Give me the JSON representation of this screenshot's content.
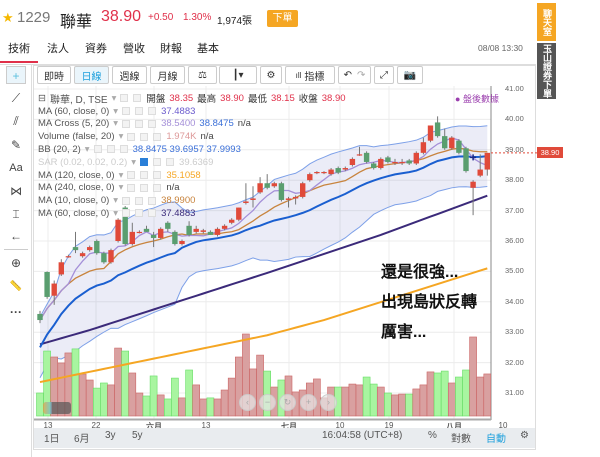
{
  "header": {
    "code": "1229",
    "name": "聯華",
    "price": "38.90",
    "change": "+0.50",
    "change_pct": "1.30%",
    "volume": "1,974張",
    "order_button": "下單"
  },
  "side_tabs": {
    "chat": "聊天室",
    "broker": "玉山證券下單"
  },
  "tabs": [
    {
      "label": "技術",
      "active": true
    },
    {
      "label": "法人"
    },
    {
      "label": "資券"
    },
    {
      "label": "營收"
    },
    {
      "label": "財報"
    },
    {
      "label": "基本"
    }
  ],
  "datetime": "08/08 13:30",
  "toolbar": {
    "realtime": "即時",
    "daily": "日線",
    "weekly": "週線",
    "monthly": "月線",
    "indicators": "指標"
  },
  "legend": {
    "symbol": "聯華, D, TSE",
    "open_label": "開盤",
    "open": "38.35",
    "high_label": "最高",
    "high": "38.90",
    "low_label": "最低",
    "low": "38.15",
    "close_label": "收盤",
    "close": "38.90",
    "rows": [
      {
        "name": "MA (60, close, 0)",
        "values": [
          "37.4883"
        ],
        "colors": [
          "#6a5acd"
        ]
      },
      {
        "name": "MA Cross (5, 20)",
        "values": [
          "38.5400",
          "38.8475",
          "n/a"
        ],
        "colors": [
          "#a48fd8",
          "#3a6fd8",
          "#444"
        ]
      },
      {
        "name": "Volume (false, 20)",
        "values": [
          "1.974K",
          "n/a"
        ],
        "colors": [
          "#d99",
          "#444"
        ]
      },
      {
        "name": "BB (20, 2)",
        "values": [
          "38.8475 39.6957 37.9993"
        ],
        "colors": [
          "#3a6fd8"
        ]
      },
      {
        "name": "SAR (0.02, 0.02, 0.2)",
        "values": [
          "39.6369"
        ],
        "colors": [
          "#ccc"
        ],
        "hidden": true
      },
      {
        "name": "MA (120, close, 0)",
        "values": [
          "35.1058"
        ],
        "colors": [
          "#f5a623"
        ]
      },
      {
        "name": "MA (240, close, 0)",
        "values": [
          "n/a"
        ],
        "colors": [
          "#444"
        ]
      },
      {
        "name": "MA (10, close, 0)",
        "values": [
          "38.9900"
        ],
        "colors": [
          "#c8843e"
        ]
      },
      {
        "name": "MA (60, close, 0)",
        "values": [
          "37.4883"
        ],
        "colors": [
          "#3b2a7a"
        ]
      }
    ]
  },
  "after_hours": "盤後數據",
  "current_price_label": "38.90",
  "annotations": [
    "還是很強...",
    "出現島狀反轉",
    "厲害..."
  ],
  "bottom_bar": {
    "ranges": [
      "1日",
      "6月",
      "3y",
      "5y"
    ],
    "time": "16:04:58 (UTC+8)",
    "percent": "%",
    "log": "對數",
    "auto": "自動"
  },
  "colors": {
    "up": "#e04a3a",
    "down": "#5a9e6f",
    "vol_up": "#d9a0a0",
    "vol_down": "#a8f5a0",
    "ma5": "#a48fd8",
    "ma10": "#c8843e",
    "ma20": "#1a5fd0",
    "ma60": "#3b2a7a",
    "ma120": "#f5a623",
    "bb": "#7da0e8",
    "accent": "#f5a623"
  },
  "chart_data": {
    "type": "candlestick",
    "ylim": [
      30.1,
      41.1
    ],
    "yticks": [
      "41.00",
      "40.00",
      "39.00",
      "38.00",
      "37.00",
      "36.00",
      "35.00",
      "34.00",
      "33.00",
      "32.00",
      "31.00"
    ],
    "xticks": [
      "13",
      "22",
      "六月",
      "13",
      "七月",
      "10",
      "19",
      "八月",
      "10"
    ],
    "ohlc": [
      [
        33.6,
        33.7,
        33.3,
        33.4
      ],
      [
        34.98,
        35.0,
        34.1,
        34.16
      ],
      [
        34.2,
        34.7,
        33.9,
        34.6
      ],
      [
        34.9,
        35.4,
        34.85,
        35.3
      ],
      [
        35.5,
        35.55,
        35.45,
        35.5
      ],
      [
        35.8,
        36.3,
        35.6,
        35.7
      ],
      [
        35.5,
        35.65,
        35.45,
        35.6
      ],
      [
        35.7,
        35.85,
        35.65,
        35.8
      ],
      [
        36.0,
        36.05,
        35.55,
        35.6
      ],
      [
        35.6,
        35.65,
        35.25,
        35.3
      ],
      [
        35.3,
        35.75,
        35.25,
        35.7
      ],
      [
        36.0,
        36.75,
        35.95,
        36.7
      ],
      [
        37.1,
        37.15,
        35.85,
        35.9
      ],
      [
        35.9,
        36.6,
        35.85,
        36.3
      ],
      [
        36.3,
        36.35,
        36.25,
        36.3
      ],
      [
        36.4,
        36.5,
        36.3,
        36.3
      ],
      [
        36.2,
        36.3,
        35.8,
        36.1
      ],
      [
        36.1,
        36.45,
        36.05,
        36.4
      ],
      [
        36.6,
        36.65,
        36.3,
        36.4
      ],
      [
        36.3,
        36.35,
        35.85,
        35.9
      ],
      [
        35.9,
        36.05,
        35.85,
        36.0
      ],
      [
        36.5,
        36.65,
        36.15,
        36.2
      ],
      [
        36.3,
        36.5,
        36.25,
        36.4
      ],
      [
        36.3,
        36.4,
        36.25,
        36.35
      ],
      [
        36.3,
        36.35,
        36.2,
        36.2
      ],
      [
        36.2,
        36.45,
        36.15,
        36.4
      ],
      [
        36.4,
        36.55,
        36.35,
        36.5
      ],
      [
        36.6,
        36.75,
        36.55,
        36.7
      ],
      [
        36.7,
        37.1,
        36.65,
        37.1
      ],
      [
        37.25,
        37.9,
        37.2,
        37.3
      ],
      [
        37.35,
        37.8,
        37.1,
        37.4
      ],
      [
        37.6,
        38.1,
        37.55,
        37.9
      ],
      [
        37.9,
        38.2,
        37.7,
        37.75
      ],
      [
        37.8,
        37.95,
        37.75,
        37.9
      ],
      [
        37.9,
        37.95,
        37.3,
        37.35
      ],
      [
        37.35,
        37.45,
        37.1,
        37.4
      ],
      [
        37.4,
        37.5,
        37.2,
        37.45
      ],
      [
        37.45,
        37.95,
        37.4,
        37.9
      ],
      [
        38.0,
        38.25,
        37.95,
        38.2
      ],
      [
        38.25,
        38.3,
        38.2,
        38.27
      ],
      [
        38.25,
        38.3,
        38.2,
        38.27
      ],
      [
        38.2,
        38.4,
        38.15,
        38.35
      ],
      [
        38.4,
        38.45,
        38.2,
        38.25
      ],
      [
        38.35,
        38.45,
        38.3,
        38.4
      ],
      [
        38.5,
        38.75,
        38.45,
        38.7
      ],
      [
        38.85,
        39.1,
        38.8,
        38.85
      ],
      [
        38.9,
        38.95,
        38.55,
        38.6
      ],
      [
        38.55,
        38.6,
        38.35,
        38.4
      ],
      [
        38.4,
        38.75,
        38.35,
        38.7
      ],
      [
        38.75,
        38.8,
        38.55,
        38.6
      ],
      [
        38.6,
        38.7,
        38.5,
        38.6
      ],
      [
        38.6,
        38.7,
        38.5,
        38.6
      ],
      [
        38.65,
        38.7,
        38.5,
        38.55
      ],
      [
        38.55,
        38.95,
        38.5,
        38.9
      ],
      [
        38.9,
        39.4,
        38.85,
        39.25
      ],
      [
        39.3,
        39.8,
        39.25,
        39.8
      ],
      [
        39.9,
        40.1,
        39.4,
        39.45
      ],
      [
        39.45,
        39.7,
        39.0,
        39.05
      ],
      [
        39.05,
        39.45,
        39.0,
        39.4
      ],
      [
        39.3,
        39.35,
        38.85,
        38.9
      ],
      [
        39.05,
        39.1,
        38.25,
        38.3
      ],
      [
        37.75,
        38.0,
        36.85,
        37.95
      ],
      [
        38.15,
        38.85,
        38.1,
        38.35
      ],
      [
        38.35,
        38.9,
        38.15,
        38.9
      ]
    ],
    "volume_k": [
      1.08,
      3.05,
      2.77,
      2.49,
      2.96,
      3.15,
      1.97,
      1.69,
      1.31,
      1.55,
      1.46,
      3.19,
      3.05,
      2.02,
      1.08,
      0.94,
      1.88,
      0.99,
      0.8,
      1.78,
      0.85,
      2.16,
      1.46,
      0.8,
      0.85,
      0.8,
      1.22,
      1.78,
      2.77,
      3.85,
      2.21,
      2.86,
      2.11,
      1.36,
      1.69,
      1.88,
      1.13,
      1.22,
      1.55,
      1.74,
      0.85,
      1.36,
      1.36,
      1.36,
      1.5,
      1.46,
      1.83,
      1.5,
      1.36,
      1.08,
      0.99,
      1.03,
      1.03,
      1.27,
      1.46,
      2.07,
      2.02,
      2.11,
      1.55,
      1.83,
      2.16,
      3.71,
      1.83,
      1.974
    ],
    "ma60_anchors": {
      "index": [
        0,
        7,
        32,
        48,
        63
      ],
      "value": [
        32.6,
        33.07,
        34.95,
        36.2,
        37.49
      ]
    },
    "ma120_anchors": {
      "index": [
        0,
        32,
        40,
        63
      ],
      "value": [
        31.36,
        32.9,
        33.4,
        35.1
      ]
    }
  }
}
